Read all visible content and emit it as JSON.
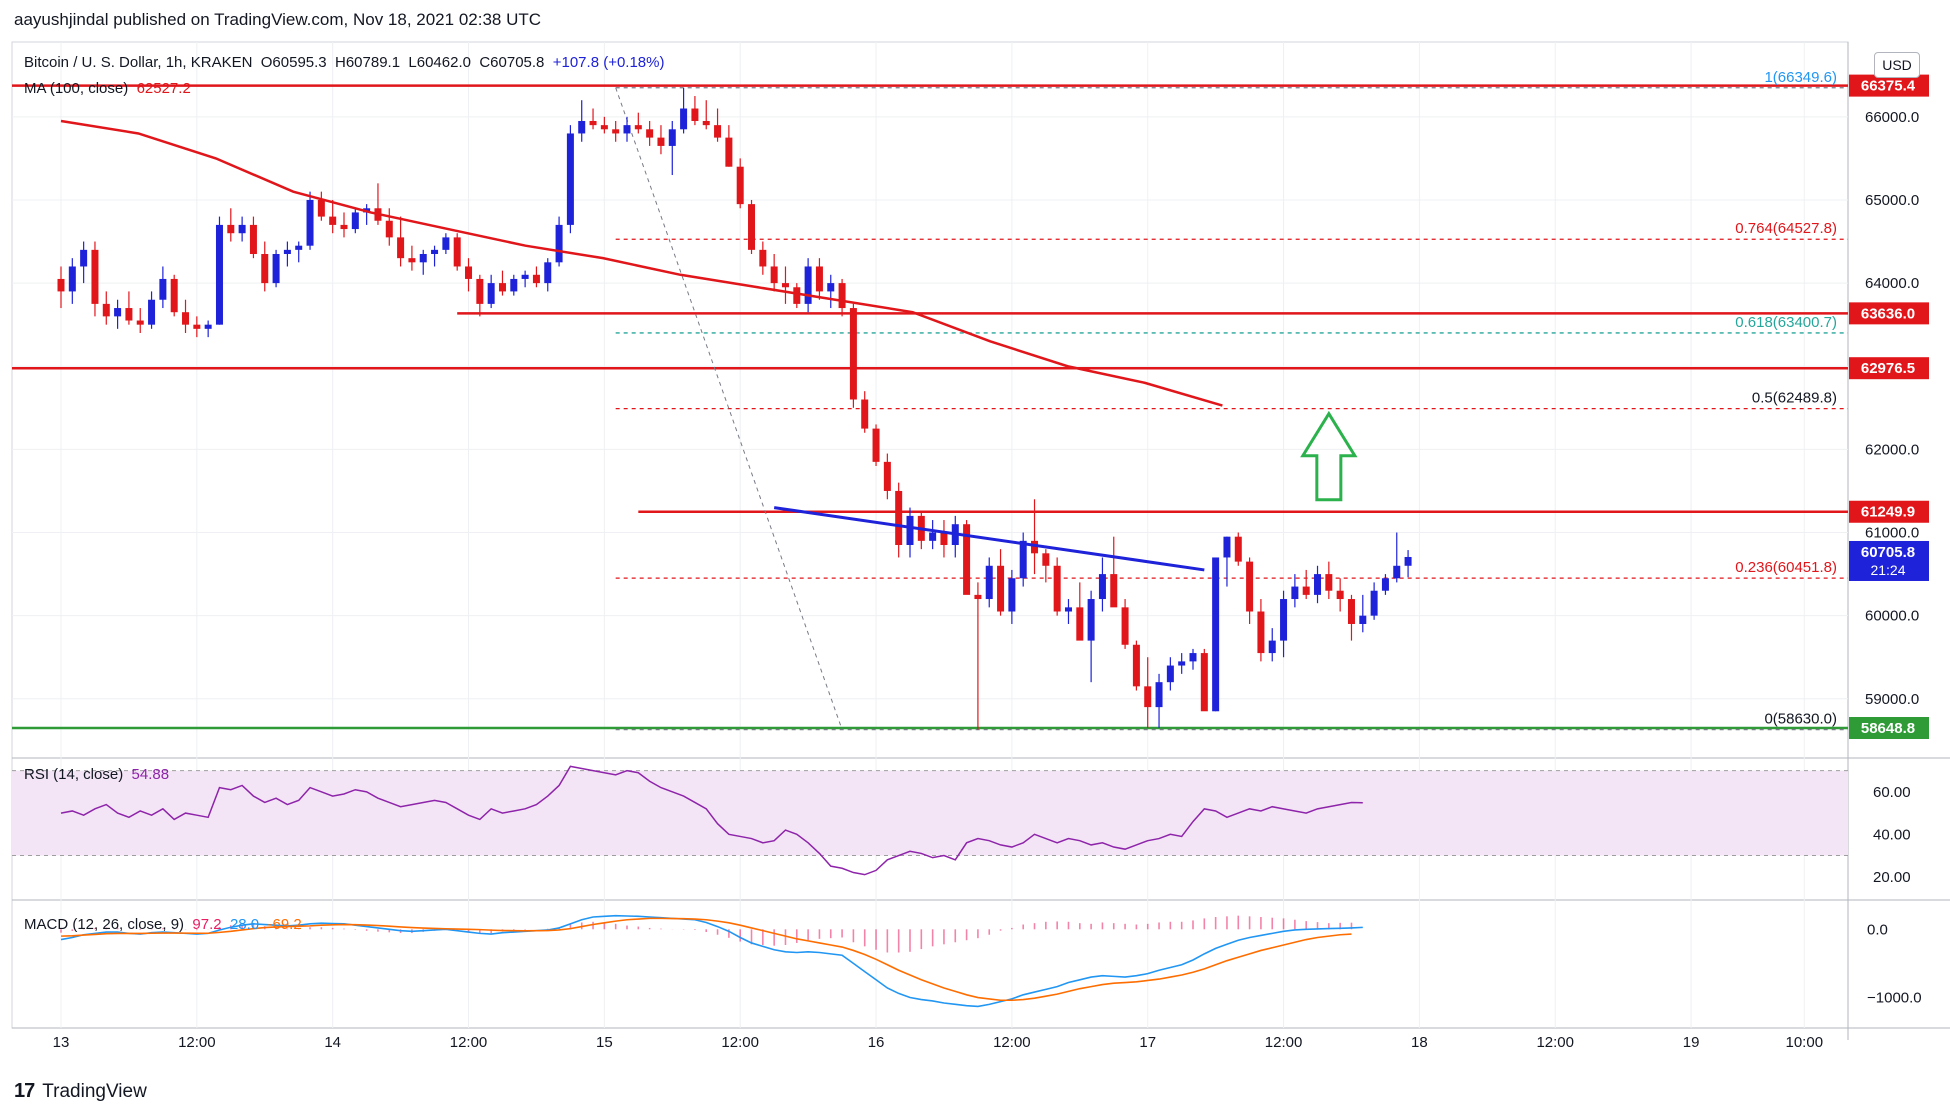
{
  "header": {
    "text": "aayushjindal published on TradingView.com, Nov 18, 2021 02:38 UTC"
  },
  "footer": {
    "brand": "TradingView",
    "logo_text": "17"
  },
  "legend": {
    "symbol": "Bitcoin / U. S. Dollar, 1h, KRAKEN",
    "o": "O60595.3",
    "h": "H60789.1",
    "l": "L60462.0",
    "c": "C60705.8",
    "change": "+107.8 (+0.18%)",
    "ma_label": "MA (100, close)",
    "ma_value": "62527.2",
    "rsi_label": "RSI (14, close)",
    "rsi_value": "54.88",
    "macd_label": "MACD (12, 26, close, 9)",
    "macd_hist": "97.2",
    "macd_macd": "28.0",
    "macd_signal": "-69.2"
  },
  "currency_button": "USD",
  "colors": {
    "up": "#1e22d8",
    "down": "#e0161b",
    "ma": "#e0161b",
    "rsi": "#8e24aa",
    "macd": "#2196f3",
    "signal": "#ff6d00",
    "support": "#2e9b36",
    "arrow": "#2bb24c",
    "trend": "#1e22d8"
  },
  "chart_data": {
    "type": "candlestick",
    "price_axis": {
      "ticks": [
        59000,
        60000,
        61000,
        62000,
        63000,
        64000,
        65000,
        66000
      ],
      "labels": [
        "59000.0",
        "60000.0",
        "61000.0",
        "62000.0",
        "63000.0",
        "64000.0",
        "65000.0",
        "66000.0"
      ],
      "ylim": [
        58300,
        66900
      ]
    },
    "time_axis": {
      "labels": [
        "13",
        "12:00",
        "14",
        "12:00",
        "15",
        "12:00",
        "16",
        "12:00",
        "17",
        "12:00",
        "18",
        "12:00",
        "19",
        "10:00"
      ],
      "hours": [
        0,
        12,
        24,
        36,
        48,
        60,
        72,
        84,
        96,
        108,
        120,
        132,
        144,
        154
      ]
    },
    "candles_ohlc": [
      [
        64050,
        64200,
        63700,
        63900
      ],
      [
        63900,
        64300,
        63750,
        64200
      ],
      [
        64200,
        64500,
        64000,
        64400
      ],
      [
        64400,
        64500,
        63600,
        63750
      ],
      [
        63750,
        63900,
        63500,
        63600
      ],
      [
        63600,
        63800,
        63450,
        63700
      ],
      [
        63700,
        63900,
        63500,
        63550
      ],
      [
        63550,
        63700,
        63400,
        63500
      ],
      [
        63500,
        63900,
        63450,
        63800
      ],
      [
        63800,
        64200,
        63700,
        64050
      ],
      [
        64050,
        64100,
        63600,
        63650
      ],
      [
        63650,
        63800,
        63400,
        63500
      ],
      [
        63500,
        63600,
        63350,
        63450
      ],
      [
        63450,
        63550,
        63350,
        63500
      ],
      [
        63500,
        64800,
        63500,
        64700
      ],
      [
        64700,
        64900,
        64500,
        64600
      ],
      [
        64600,
        64800,
        64500,
        64700
      ],
      [
        64700,
        64800,
        64300,
        64350
      ],
      [
        64350,
        64500,
        63900,
        64000
      ],
      [
        64000,
        64400,
        63950,
        64350
      ],
      [
        64350,
        64500,
        64200,
        64400
      ],
      [
        64400,
        64500,
        64250,
        64450
      ],
      [
        64450,
        65100,
        64400,
        65000
      ],
      [
        65000,
        65100,
        64750,
        64800
      ],
      [
        64800,
        65000,
        64600,
        64700
      ],
      [
        64700,
        64850,
        64550,
        64650
      ],
      [
        64650,
        64900,
        64600,
        64850
      ],
      [
        64850,
        64950,
        64700,
        64900
      ],
      [
        64900,
        65200,
        64700,
        64750
      ],
      [
        64750,
        64900,
        64450,
        64550
      ],
      [
        64550,
        64800,
        64200,
        64300
      ],
      [
        64300,
        64450,
        64150,
        64250
      ],
      [
        64250,
        64400,
        64100,
        64350
      ],
      [
        64350,
        64450,
        64200,
        64400
      ],
      [
        64400,
        64600,
        64350,
        64550
      ],
      [
        64550,
        64600,
        64150,
        64200
      ],
      [
        64200,
        64300,
        63900,
        64050
      ],
      [
        64050,
        64100,
        63600,
        63750
      ],
      [
        63750,
        64100,
        63700,
        64000
      ],
      [
        64000,
        64150,
        63850,
        63900
      ],
      [
        63900,
        64100,
        63850,
        64050
      ],
      [
        64050,
        64150,
        63950,
        64100
      ],
      [
        64100,
        64200,
        63950,
        64000
      ],
      [
        64000,
        64300,
        63900,
        64250
      ],
      [
        64250,
        64800,
        64200,
        64700
      ],
      [
        64700,
        65900,
        64600,
        65800
      ],
      [
        65800,
        66200,
        65700,
        65950
      ],
      [
        65950,
        66100,
        65850,
        65900
      ],
      [
        65900,
        66000,
        65800,
        65850
      ],
      [
        65850,
        65950,
        65700,
        65800
      ],
      [
        65800,
        66000,
        65700,
        65900
      ],
      [
        65900,
        66050,
        65800,
        65850
      ],
      [
        65850,
        65950,
        65650,
        65750
      ],
      [
        65750,
        65900,
        65550,
        65650
      ],
      [
        65650,
        65950,
        65300,
        65850
      ],
      [
        65850,
        66349,
        65800,
        66100
      ],
      [
        66100,
        66250,
        65900,
        65950
      ],
      [
        65950,
        66200,
        65850,
        65900
      ],
      [
        65900,
        66100,
        65700,
        65750
      ],
      [
        65750,
        65900,
        65400,
        65400
      ],
      [
        65400,
        65500,
        64900,
        64950
      ],
      [
        64950,
        65000,
        64350,
        64400
      ],
      [
        64400,
        64500,
        64100,
        64200
      ],
      [
        64200,
        64350,
        63900,
        64000
      ],
      [
        64000,
        64200,
        63750,
        63950
      ],
      [
        63950,
        64000,
        63700,
        63750
      ],
      [
        63750,
        64300,
        63650,
        64200
      ],
      [
        64200,
        64300,
        63800,
        63900
      ],
      [
        63900,
        64100,
        63700,
        64000
      ],
      [
        64000,
        64050,
        63600,
        63700
      ],
      [
        63700,
        63750,
        62500,
        62600
      ],
      [
        62600,
        62700,
        62200,
        62250
      ],
      [
        62250,
        62300,
        61800,
        61850
      ],
      [
        61850,
        61950,
        61400,
        61500
      ],
      [
        61500,
        61600,
        60700,
        60850
      ],
      [
        60850,
        61300,
        60700,
        61200
      ],
      [
        61200,
        61250,
        60800,
        60900
      ],
      [
        60900,
        61150,
        60800,
        61000
      ],
      [
        61000,
        61150,
        60700,
        60850
      ],
      [
        60850,
        61200,
        60700,
        61100
      ],
      [
        61100,
        61150,
        60300,
        60250
      ],
      [
        60250,
        60400,
        58630,
        60200
      ],
      [
        60200,
        60700,
        60100,
        60600
      ],
      [
        60600,
        60800,
        60000,
        60050
      ],
      [
        60050,
        60550,
        59900,
        60450
      ],
      [
        60450,
        61000,
        60350,
        60900
      ],
      [
        60900,
        61400,
        60500,
        60750
      ],
      [
        60750,
        60800,
        60400,
        60600
      ],
      [
        60600,
        60700,
        60000,
        60050
      ],
      [
        60050,
        60200,
        59900,
        60100
      ],
      [
        60100,
        60400,
        59800,
        59700
      ],
      [
        59700,
        60300,
        59200,
        60200
      ],
      [
        60200,
        60700,
        60050,
        60500
      ],
      [
        60500,
        60950,
        60200,
        60100
      ],
      [
        60100,
        60200,
        59600,
        59650
      ],
      [
        59650,
        59700,
        59100,
        59150
      ],
      [
        59150,
        59500,
        58648,
        58900
      ],
      [
        58900,
        59300,
        58650,
        59200
      ],
      [
        59200,
        59500,
        59100,
        59400
      ],
      [
        59400,
        59550,
        59300,
        59450
      ],
      [
        59450,
        59600,
        59350,
        59550
      ],
      [
        59550,
        59600,
        58900,
        58850
      ],
      [
        58850,
        60700,
        58850,
        60700
      ],
      [
        60700,
        60950,
        60350,
        60950
      ],
      [
        60950,
        61000,
        60600,
        60650
      ],
      [
        60650,
        60700,
        59900,
        60050
      ],
      [
        60050,
        60200,
        59450,
        59550
      ],
      [
        59550,
        59850,
        59450,
        59700
      ],
      [
        59700,
        60300,
        59500,
        60200
      ],
      [
        60200,
        60500,
        60100,
        60350
      ],
      [
        60350,
        60550,
        60200,
        60250
      ],
      [
        60250,
        60600,
        60150,
        60500
      ],
      [
        60500,
        60650,
        60200,
        60300
      ],
      [
        60300,
        60450,
        60050,
        60200
      ],
      [
        60200,
        60250,
        59700,
        59900
      ],
      [
        59900,
        60250,
        59800,
        60000
      ],
      [
        60000,
        60400,
        59950,
        60300
      ],
      [
        60300,
        60500,
        60250,
        60450
      ],
      [
        60450,
        61000,
        60400,
        60600
      ],
      [
        60600,
        60789,
        60462,
        60705.8
      ]
    ],
    "ma100": [
      [
        0,
        65950
      ],
      [
        12,
        65800
      ],
      [
        24,
        65500
      ],
      [
        36,
        65100
      ],
      [
        48,
        64850
      ],
      [
        60,
        64650
      ],
      [
        72,
        64450
      ],
      [
        84,
        64300
      ],
      [
        96,
        64100
      ],
      [
        108,
        63950
      ],
      [
        120,
        63800
      ],
      [
        132,
        63650
      ],
      [
        144,
        63300
      ],
      [
        156,
        63000
      ],
      [
        168,
        62800
      ],
      [
        180,
        62527.2
      ]
    ],
    "fibonacci": {
      "levels": [
        {
          "ratio": "1",
          "label": "1(66349.6)",
          "price": 66349.6
        },
        {
          "ratio": "0.764",
          "label": "0.764(64527.8)",
          "price": 64527.8
        },
        {
          "ratio": "0.618",
          "label": "0.618(63400.7)",
          "price": 63400.7
        },
        {
          "ratio": "0.5",
          "label": "0.5(62489.8)",
          "price": 62489.8
        },
        {
          "ratio": "0.236",
          "label": "0.236(60451.8)",
          "price": 60451.8
        },
        {
          "ratio": "0",
          "label": "0(58630.0)",
          "price": 58630.0
        }
      ]
    },
    "horizontal_levels": [
      {
        "price": 66375.4,
        "label": "66375.4",
        "color": "#e0161b"
      },
      {
        "price": 63636.0,
        "label": "63636.0",
        "color": "#e0161b"
      },
      {
        "price": 62976.5,
        "label": "62976.5",
        "color": "#e0161b"
      },
      {
        "price": 61249.9,
        "label": "61249.9",
        "color": "#e0161b"
      },
      {
        "price": 58648.8,
        "label": "58648.8",
        "color": "#2e9b36"
      }
    ],
    "last_price": {
      "value": "60705.8",
      "countdown": "21:24"
    },
    "trendline": {
      "from": [
        63,
        61300
      ],
      "to": [
        101,
        60550
      ]
    },
    "rsi": {
      "ylim": [
        10,
        75
      ],
      "ticks": [
        20,
        40,
        60
      ],
      "labels": [
        "20.00",
        "40.00",
        "60.00"
      ],
      "band": [
        30,
        70
      ],
      "values": [
        50,
        51,
        49,
        52,
        54,
        50,
        48,
        51,
        49,
        52,
        47,
        50,
        49,
        48,
        62,
        61,
        63,
        58,
        55,
        57,
        54,
        56,
        62,
        60,
        58,
        59,
        61,
        60,
        57,
        55,
        53,
        54,
        55,
        56,
        55,
        52,
        49,
        47,
        52,
        50,
        51,
        52,
        54,
        58,
        63,
        72,
        71,
        70,
        69,
        68,
        70,
        69,
        65,
        62,
        60,
        58,
        55,
        52,
        45,
        40,
        39,
        38,
        36,
        37,
        42,
        40,
        36,
        31,
        25,
        24,
        22,
        21,
        23,
        28,
        30,
        32,
        31,
        29,
        30,
        28,
        36,
        38,
        37,
        35,
        34,
        36,
        40,
        38,
        36,
        38,
        37,
        35,
        36,
        34,
        33,
        35,
        37,
        38,
        40,
        39,
        46,
        52,
        51,
        48,
        50,
        52,
        51,
        53,
        52,
        51,
        50,
        52,
        53,
        54,
        55,
        54.88
      ]
    },
    "macd": {
      "ylim": [
        -1300,
        400
      ],
      "ticks": [
        -1000,
        0
      ],
      "labels": [
        "−1000.0",
        "0.0"
      ],
      "macd_values": [
        -150,
        -120,
        -80,
        -60,
        -40,
        -40,
        -60,
        -70,
        -50,
        -40,
        -50,
        -60,
        -70,
        -60,
        -10,
        30,
        60,
        80,
        70,
        60,
        50,
        60,
        80,
        90,
        85,
        80,
        60,
        40,
        20,
        0,
        -20,
        -30,
        -20,
        -10,
        0,
        -20,
        -40,
        -60,
        -70,
        -50,
        -40,
        -30,
        -20,
        -10,
        20,
        80,
        140,
        180,
        190,
        200,
        195,
        190,
        180,
        170,
        160,
        150,
        140,
        100,
        40,
        -30,
        -120,
        -200,
        -250,
        -300,
        -330,
        -340,
        -330,
        -340,
        -360,
        -380,
        -500,
        -620,
        -740,
        -860,
        -940,
        -1000,
        -1030,
        -1050,
        -1080,
        -1100,
        -1120,
        -1130,
        -1100,
        -1060,
        -1020,
        -960,
        -920,
        -880,
        -840,
        -780,
        -740,
        -700,
        -680,
        -690,
        -700,
        -680,
        -650,
        -600,
        -560,
        -520,
        -450,
        -360,
        -280,
        -220,
        -160,
        -120,
        -90,
        -60,
        -30,
        -10,
        0,
        5,
        10,
        15,
        20,
        28
      ],
      "signal_values": [
        -100,
        -95,
        -85,
        -75,
        -65,
        -60,
        -60,
        -60,
        -58,
        -55,
        -55,
        -56,
        -58,
        -58,
        -45,
        -30,
        -10,
        10,
        25,
        35,
        40,
        45,
        50,
        60,
        65,
        70,
        68,
        62,
        55,
        45,
        35,
        25,
        18,
        12,
        8,
        4,
        0,
        -5,
        -12,
        -18,
        -20,
        -22,
        -20,
        -18,
        -10,
        10,
        40,
        70,
        95,
        120,
        140,
        150,
        160,
        160,
        158,
        155,
        150,
        140,
        120,
        95,
        60,
        20,
        -20,
        -60,
        -100,
        -140,
        -170,
        -200,
        -230,
        -260,
        -310,
        -370,
        -440,
        -520,
        -600,
        -670,
        -740,
        -800,
        -860,
        -910,
        -960,
        -1000,
        -1020,
        -1040,
        -1040,
        -1030,
        -1010,
        -980,
        -950,
        -910,
        -870,
        -840,
        -810,
        -790,
        -780,
        -770,
        -750,
        -730,
        -700,
        -670,
        -630,
        -580,
        -520,
        -460,
        -410,
        -360,
        -310,
        -270,
        -230,
        -190,
        -150,
        -120,
        -100,
        -80,
        -69.2
      ],
      "hist_values": [
        -50,
        -25,
        5,
        15,
        25,
        20,
        0,
        -10,
        8,
        15,
        5,
        -4,
        -12,
        -2,
        35,
        60,
        70,
        70,
        45,
        25,
        10,
        15,
        30,
        30,
        20,
        10,
        -8,
        -22,
        -35,
        -45,
        -55,
        -55,
        -38,
        -22,
        -8,
        -24,
        -40,
        -55,
        -58,
        -32,
        -20,
        -8,
        0,
        8,
        30,
        70,
        100,
        110,
        95,
        80,
        55,
        40,
        20,
        10,
        2,
        -5,
        -10,
        -40,
        -80,
        -125,
        -180,
        -220,
        -230,
        -240,
        -230,
        -200,
        -160,
        -140,
        -130,
        -120,
        -190,
        -250,
        -300,
        -340,
        -340,
        -330,
        -290,
        -250,
        -220,
        -190,
        -160,
        -130,
        -80,
        -20,
        20,
        70,
        90,
        110,
        115,
        110,
        90,
        80,
        100,
        90,
        80,
        70,
        80,
        100,
        110,
        110,
        130,
        160,
        180,
        190,
        200,
        190,
        180,
        170,
        160,
        140,
        120,
        105,
        90,
        95,
        97.2
      ]
    }
  }
}
